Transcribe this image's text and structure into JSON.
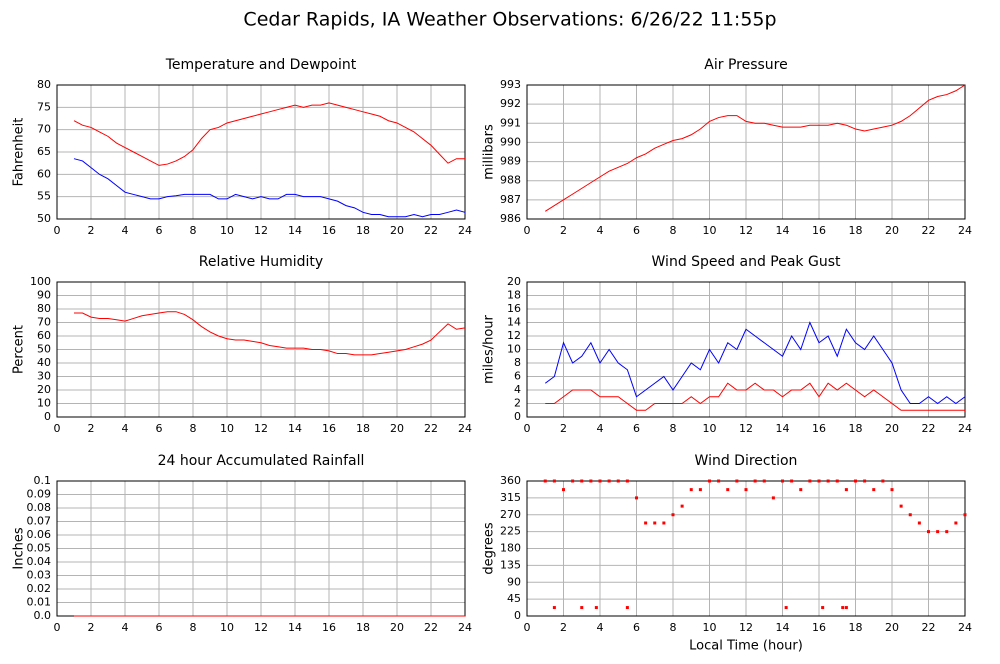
{
  "title": "Cedar Rapids, IA Weather Observations: 6/26/22 11:55p",
  "chart_data": [
    {
      "type": "line",
      "title": "Temperature and Dewpoint",
      "ylabel": "Fahrenheit",
      "x": [
        1,
        1.5,
        2,
        2.5,
        3,
        3.5,
        4,
        4.5,
        5,
        5.5,
        6,
        6.5,
        7,
        7.5,
        8,
        8.5,
        9,
        9.5,
        10,
        10.5,
        11,
        11.5,
        12,
        12.5,
        13,
        13.5,
        14,
        14.5,
        15,
        15.5,
        16,
        16.5,
        17,
        17.5,
        18,
        18.5,
        19,
        19.5,
        20,
        20.5,
        21,
        21.5,
        22,
        22.5,
        23,
        23.5,
        24
      ],
      "xlim": [
        0,
        24
      ],
      "xticks": [
        0,
        2,
        4,
        6,
        8,
        10,
        12,
        14,
        16,
        18,
        20,
        22,
        24
      ],
      "ylim": [
        50,
        80
      ],
      "yticks": [
        50,
        55,
        60,
        65,
        70,
        75,
        80
      ],
      "grid": true,
      "series": [
        {
          "color": "#ff0000",
          "values": [
            72,
            71,
            70.5,
            69.5,
            68.5,
            67,
            66,
            65,
            64,
            63,
            62,
            62.3,
            63,
            64,
            65.5,
            68,
            70,
            70.5,
            71.5,
            72,
            72.5,
            73,
            73.5,
            74,
            74.5,
            75,
            75.5,
            75,
            75.5,
            75.5,
            76,
            75.5,
            75,
            74.5,
            74,
            73.5,
            73,
            72,
            71.5,
            70.5,
            69.5,
            68,
            66.5,
            64.5,
            62.5,
            63.5,
            63.5
          ]
        },
        {
          "color": "#0000ff",
          "values": [
            63.5,
            63,
            61.5,
            60,
            59,
            57.5,
            56,
            55.5,
            55,
            54.5,
            54.5,
            55,
            55.2,
            55.5,
            55.5,
            55.5,
            55.5,
            54.5,
            54.5,
            55.5,
            55,
            54.5,
            55,
            54.5,
            54.5,
            55.5,
            55.5,
            55,
            55,
            55,
            54.5,
            54,
            53,
            52.5,
            51.5,
            51,
            51,
            50.5,
            50.5,
            50.5,
            51,
            50.5,
            51,
            51,
            51.5,
            52,
            51.5
          ]
        }
      ]
    },
    {
      "type": "line",
      "title": "Air Pressure",
      "ylabel": "millibars",
      "x": [
        1,
        1.5,
        2,
        2.5,
        3,
        3.5,
        4,
        4.5,
        5,
        5.5,
        6,
        6.5,
        7,
        7.5,
        8,
        8.5,
        9,
        9.5,
        10,
        10.5,
        11,
        11.5,
        12,
        12.5,
        13,
        13.5,
        14,
        14.5,
        15,
        15.5,
        16,
        16.5,
        17,
        17.5,
        18,
        18.5,
        19,
        19.5,
        20,
        20.5,
        21,
        21.5,
        22,
        22.5,
        23,
        23.5,
        24
      ],
      "xlim": [
        0,
        24
      ],
      "xticks": [
        0,
        2,
        4,
        6,
        8,
        10,
        12,
        14,
        16,
        18,
        20,
        22,
        24
      ],
      "ylim": [
        986,
        993
      ],
      "yticks": [
        986,
        987,
        988,
        989,
        990,
        991,
        992,
        993
      ],
      "grid": true,
      "series": [
        {
          "color": "#ff0000",
          "values": [
            986.4,
            986.7,
            987,
            987.3,
            987.6,
            987.9,
            988.2,
            988.5,
            988.7,
            988.9,
            989.2,
            989.4,
            989.7,
            989.9,
            990.1,
            990.2,
            990.4,
            990.7,
            991.1,
            991.3,
            991.4,
            991.4,
            991.1,
            991,
            991,
            990.9,
            990.8,
            990.8,
            990.8,
            990.9,
            990.9,
            990.9,
            991,
            990.9,
            990.7,
            990.6,
            990.7,
            990.8,
            990.9,
            991.1,
            991.4,
            991.8,
            992.2,
            992.4,
            992.5,
            992.7,
            993
          ]
        }
      ]
    },
    {
      "type": "line",
      "title": "Relative Humidity",
      "ylabel": "Percent",
      "x": [
        1,
        1.5,
        2,
        2.5,
        3,
        3.5,
        4,
        4.5,
        5,
        5.5,
        6,
        6.5,
        7,
        7.5,
        8,
        8.5,
        9,
        9.5,
        10,
        10.5,
        11,
        11.5,
        12,
        12.5,
        13,
        13.5,
        14,
        14.5,
        15,
        15.5,
        16,
        16.5,
        17,
        17.5,
        18,
        18.5,
        19,
        19.5,
        20,
        20.5,
        21,
        21.5,
        22,
        22.5,
        23,
        23.5,
        24
      ],
      "xlim": [
        0,
        24
      ],
      "xticks": [
        0,
        2,
        4,
        6,
        8,
        10,
        12,
        14,
        16,
        18,
        20,
        22,
        24
      ],
      "ylim": [
        0,
        100
      ],
      "yticks": [
        0,
        10,
        20,
        30,
        40,
        50,
        60,
        70,
        80,
        90,
        100
      ],
      "grid": true,
      "series": [
        {
          "color": "#ff0000",
          "values": [
            77,
            77,
            74,
            73,
            73,
            72,
            71,
            73,
            75,
            76,
            77,
            78,
            78,
            76,
            72,
            67,
            63,
            60,
            58,
            57,
            57,
            56,
            55,
            53,
            52,
            51,
            51,
            51,
            50,
            50,
            49,
            47,
            47,
            46,
            46,
            46,
            47,
            48,
            49,
            50,
            52,
            54,
            57,
            63,
            69,
            65,
            66
          ]
        }
      ]
    },
    {
      "type": "line",
      "title": "Wind Speed and Peak Gust",
      "ylabel": "miles/hour",
      "x": [
        1,
        1.5,
        2,
        2.5,
        3,
        3.5,
        4,
        4.5,
        5,
        5.5,
        6,
        6.5,
        7,
        7.5,
        8,
        8.5,
        9,
        9.5,
        10,
        10.5,
        11,
        11.5,
        12,
        12.5,
        13,
        13.5,
        14,
        14.5,
        15,
        15.5,
        16,
        16.5,
        17,
        17.5,
        18,
        18.5,
        19,
        19.5,
        20,
        20.5,
        21,
        21.5,
        22,
        22.5,
        23,
        23.5,
        24
      ],
      "xlim": [
        0,
        24
      ],
      "xticks": [
        0,
        2,
        4,
        6,
        8,
        10,
        12,
        14,
        16,
        18,
        20,
        22,
        24
      ],
      "ylim": [
        0,
        20
      ],
      "yticks": [
        0,
        2,
        4,
        6,
        8,
        10,
        12,
        14,
        16,
        18,
        20
      ],
      "grid": true,
      "series": [
        {
          "color": "#0000ff",
          "values": [
            5,
            6,
            11,
            8,
            9,
            11,
            8,
            10,
            8,
            7,
            3,
            4,
            5,
            6,
            4,
            6,
            8,
            7,
            10,
            8,
            11,
            10,
            13,
            12,
            11,
            10,
            9,
            12,
            10,
            14,
            11,
            12,
            9,
            13,
            11,
            10,
            12,
            10,
            8,
            4,
            2,
            2,
            3,
            2,
            3,
            2,
            3
          ]
        },
        {
          "color": "#ff0000",
          "values": [
            2,
            2,
            3,
            4,
            4,
            4,
            3,
            3,
            3,
            2,
            1,
            1,
            2,
            2,
            2,
            2,
            3,
            2,
            3,
            3,
            5,
            4,
            4,
            5,
            4,
            4,
            3,
            4,
            4,
            5,
            3,
            5,
            4,
            5,
            4,
            3,
            4,
            3,
            2,
            1,
            1,
            1,
            1,
            1,
            1,
            1,
            1
          ]
        }
      ]
    },
    {
      "type": "line",
      "title": "24 hour Accumulated Rainfall",
      "ylabel": "Inches",
      "x": [
        1,
        1.5,
        2,
        2.5,
        3,
        3.5,
        4,
        4.5,
        5,
        5.5,
        6,
        6.5,
        7,
        7.5,
        8,
        8.5,
        9,
        9.5,
        10,
        10.5,
        11,
        11.5,
        12,
        12.5,
        13,
        13.5,
        14,
        14.5,
        15,
        15.5,
        16,
        16.5,
        17,
        17.5,
        18,
        18.5,
        19,
        19.5,
        20,
        20.5,
        21,
        21.5,
        22,
        22.5,
        23,
        23.5,
        24
      ],
      "xlim": [
        0,
        24
      ],
      "xticks": [
        0,
        2,
        4,
        6,
        8,
        10,
        12,
        14,
        16,
        18,
        20,
        22,
        24
      ],
      "ylim": [
        0,
        0.1
      ],
      "yticks": [
        {
          "value": 0,
          "label": "0.0"
        },
        0.01,
        0.02,
        0.03,
        0.04,
        0.05,
        0.06,
        0.07,
        0.08,
        0.09,
        0.1
      ],
      "grid": true,
      "series": [
        {
          "color": "#ff0000",
          "values": [
            0,
            0,
            0,
            0,
            0,
            0,
            0,
            0,
            0,
            0,
            0,
            0,
            0,
            0,
            0,
            0,
            0,
            0,
            0,
            0,
            0,
            0,
            0,
            0,
            0,
            0,
            0,
            0,
            0,
            0,
            0,
            0,
            0,
            0,
            0,
            0,
            0,
            0,
            0,
            0,
            0,
            0,
            0,
            0,
            0,
            0,
            0
          ]
        }
      ]
    },
    {
      "type": "scatter",
      "title": "Wind Direction",
      "ylabel": "degrees",
      "xlabel": "Local Time (hour)",
      "xlim": [
        0,
        24
      ],
      "xticks": [
        0,
        2,
        4,
        6,
        8,
        10,
        12,
        14,
        16,
        18,
        20,
        22,
        24
      ],
      "ylim": [
        0,
        360
      ],
      "yticks": [
        0,
        45,
        90,
        135,
        180,
        225,
        270,
        315,
        360
      ],
      "grid": true,
      "series": [
        {
          "color": "#ff0000",
          "x": [
            1,
            1.5,
            2,
            2.5,
            3,
            3.5,
            4,
            4.5,
            5,
            5.5,
            6,
            6.5,
            7,
            7.5,
            8,
            8.5,
            9,
            9.5,
            10,
            10.5,
            11,
            11.5,
            12,
            12.5,
            13,
            13.5,
            14,
            14.5,
            15,
            15.5,
            16,
            16.5,
            17,
            17.5,
            18,
            18.5,
            19,
            19.5,
            20,
            20.5,
            21,
            21.5,
            22,
            22.5,
            23,
            23.5,
            24
          ],
          "values": [
            360,
            360,
            337,
            360,
            360,
            360,
            360,
            360,
            360,
            360,
            315,
            248,
            248,
            248,
            270,
            293,
            337,
            337,
            360,
            360,
            337,
            360,
            337,
            360,
            360,
            315,
            360,
            360,
            337,
            360,
            360,
            360,
            360,
            337,
            360,
            360,
            337,
            360,
            337,
            293,
            270,
            248,
            225,
            225,
            225,
            248,
            270
          ]
        },
        {
          "color": "#ff0000",
          "x": [
            1.5,
            3,
            3.8,
            5.5,
            14.2,
            16.2,
            17.3,
            17.5
          ],
          "values": [
            22.5,
            22.5,
            22.5,
            22.5,
            22.5,
            22.5,
            22.5,
            22.5
          ]
        }
      ]
    }
  ]
}
